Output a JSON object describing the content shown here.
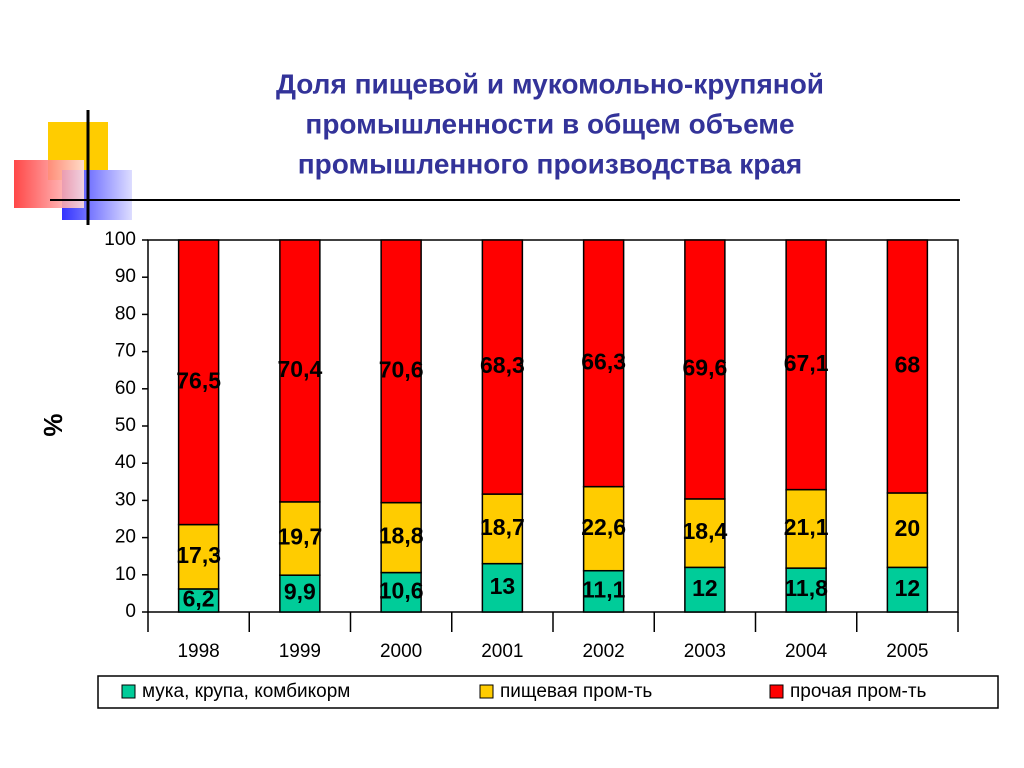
{
  "chart_data": {
    "type": "stacked_bar",
    "title": "Доля пищевой и мукомольно-крупяной промышленности в общем объеме промышленного производства края",
    "title_lines": [
      "Доля пищевой и мукомольно-крупяной",
      "промышленности в общем объеме",
      "промышленного производства края"
    ],
    "y_label": "%",
    "categories": [
      "1998",
      "1999",
      "2000",
      "2001",
      "2002",
      "2003",
      "2004",
      "2005"
    ],
    "series": [
      {
        "name": "мука, крупа, комбикорм",
        "color": "#00cc99",
        "values": [
          6.2,
          9.9,
          10.6,
          13,
          11.1,
          12,
          11.8,
          12
        ],
        "value_labels": [
          "6,2",
          "9,9",
          "10,6",
          "13",
          "11,1",
          "12",
          "11,8",
          "12"
        ]
      },
      {
        "name": "пищевая пром-ть",
        "color": "#ffcc00",
        "values": [
          17.3,
          19.7,
          18.8,
          18.7,
          22.6,
          18.4,
          21.1,
          20
        ],
        "value_labels": [
          "17,3",
          "19,7",
          "18,8",
          "18,7",
          "22,6",
          "18,4",
          "21,1",
          "20"
        ]
      },
      {
        "name": "прочая пром-ть",
        "color": "#ff0000",
        "values": [
          76.5,
          70.4,
          70.6,
          68.3,
          66.3,
          69.6,
          67.1,
          68
        ],
        "value_labels": [
          "76,5",
          "70,4",
          "70,6",
          "68,3",
          "66,3",
          "69,6",
          "67,1",
          "68"
        ]
      }
    ],
    "ylim": [
      0,
      100
    ],
    "yticks": [
      0,
      10,
      20,
      30,
      40,
      50,
      60,
      70,
      80,
      90,
      100
    ],
    "grid": false,
    "legend": "bottom"
  }
}
